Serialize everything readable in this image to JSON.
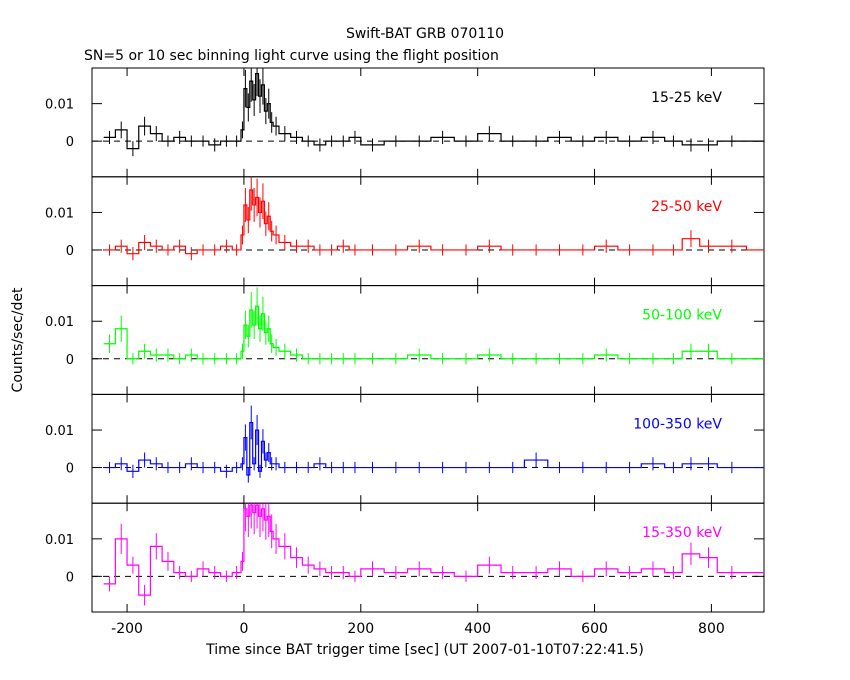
{
  "title": "Swift-BAT GRB 070110",
  "subtitle": "SN=5 or 10 sec binning light curve using the flight position",
  "chart_data": {
    "type": "line",
    "xlabel": "Time since BAT trigger time [sec] (UT 2007-01-10T07:22:41.5)",
    "ylabel": "Counts/sec/det",
    "xlim": [
      -260,
      890
    ],
    "xticks": [
      -200,
      0,
      200,
      400,
      600,
      800
    ],
    "ylim": [
      -0.0095,
      0.0195
    ],
    "yticks": [
      0,
      0.01
    ],
    "reference_line": 0,
    "panels": [
      {
        "band": "15-25 keV",
        "color": "#000000",
        "x": [
          -240,
          -220,
          -200,
          -180,
          -160,
          -140,
          -120,
          -100,
          -80,
          -60,
          -40,
          -20,
          -5,
          0,
          5,
          10,
          15,
          20,
          25,
          30,
          35,
          40,
          45,
          50,
          60,
          80,
          100,
          120,
          140,
          160,
          180,
          200,
          240,
          280,
          320,
          360,
          400,
          440,
          480,
          520,
          560,
          600,
          640,
          680,
          720,
          750,
          780,
          810,
          860
        ],
        "y": [
          0.001,
          0.003,
          -0.002,
          0.004,
          0.002,
          0.0,
          0.001,
          0.0,
          0.0,
          -0.001,
          0.0,
          0.0,
          0.003,
          0.014,
          0.009,
          0.016,
          0.011,
          0.018,
          0.012,
          0.015,
          0.008,
          0.01,
          0.005,
          0.004,
          0.002,
          0.001,
          0.0,
          -0.001,
          0.0,
          0.0,
          0.001,
          -0.001,
          0.0,
          0.0,
          0.001,
          0.0,
          0.002,
          0.0,
          0.0,
          0.001,
          0.0,
          0.001,
          0.0,
          0.001,
          0.0,
          -0.001,
          -0.001,
          0.0,
          0.0
        ]
      },
      {
        "band": "25-50 keV",
        "color": "#ff0000",
        "x": [
          -240,
          -220,
          -200,
          -180,
          -160,
          -140,
          -120,
          -100,
          -80,
          -60,
          -40,
          -20,
          -5,
          0,
          5,
          10,
          15,
          20,
          25,
          30,
          35,
          40,
          45,
          50,
          60,
          80,
          100,
          120,
          140,
          160,
          180,
          200,
          240,
          280,
          320,
          360,
          400,
          440,
          480,
          520,
          560,
          600,
          640,
          680,
          720,
          750,
          780,
          810,
          860
        ],
        "y": [
          0.0,
          0.001,
          -0.001,
          0.002,
          0.001,
          0.0,
          0.001,
          -0.001,
          0.0,
          0.0,
          0.001,
          0.0,
          0.004,
          0.012,
          0.008,
          0.016,
          0.012,
          0.014,
          0.01,
          0.013,
          0.007,
          0.009,
          0.005,
          0.004,
          0.002,
          0.001,
          0.001,
          0.0,
          0.0,
          0.001,
          0.0,
          0.0,
          0.0,
          0.001,
          0.0,
          0.0,
          0.001,
          0.0,
          0.0,
          0.0,
          0.0,
          0.001,
          0.0,
          0.0,
          0.0,
          0.003,
          0.001,
          0.001,
          0.0
        ]
      },
      {
        "band": "50-100 keV",
        "color": "#00ff00",
        "x": [
          -240,
          -220,
          -200,
          -180,
          -160,
          -140,
          -120,
          -100,
          -80,
          -60,
          -40,
          -20,
          -5,
          0,
          5,
          10,
          15,
          20,
          25,
          30,
          35,
          40,
          45,
          50,
          60,
          80,
          100,
          120,
          140,
          160,
          180,
          200,
          240,
          280,
          320,
          360,
          400,
          440,
          480,
          520,
          560,
          600,
          640,
          680,
          720,
          750,
          780,
          810,
          860
        ],
        "y": [
          0.004,
          0.008,
          0.0,
          0.002,
          0.001,
          0.001,
          0.0,
          0.001,
          0.0,
          0.0,
          0.0,
          0.0,
          0.002,
          0.009,
          0.006,
          0.013,
          0.009,
          0.014,
          0.008,
          0.012,
          0.007,
          0.008,
          0.004,
          0.003,
          0.002,
          0.001,
          0.0,
          0.0,
          0.0,
          0.0,
          0.0,
          0.0,
          0.0,
          0.001,
          0.0,
          0.0,
          0.001,
          0.0,
          0.0,
          0.0,
          0.0,
          0.001,
          0.0,
          0.0,
          0.0,
          0.002,
          0.002,
          0.0,
          0.0
        ]
      },
      {
        "band": "100-350 keV",
        "color": "#0000ff",
        "x": [
          -240,
          -220,
          -200,
          -180,
          -160,
          -140,
          -120,
          -100,
          -80,
          -60,
          -40,
          -20,
          -5,
          0,
          5,
          10,
          15,
          20,
          25,
          30,
          35,
          40,
          45,
          50,
          60,
          80,
          100,
          120,
          140,
          160,
          180,
          200,
          240,
          280,
          320,
          360,
          400,
          440,
          480,
          520,
          560,
          600,
          640,
          680,
          720,
          750,
          780,
          810,
          860
        ],
        "y": [
          0.0,
          0.001,
          -0.001,
          0.002,
          0.001,
          0.0,
          0.0,
          0.001,
          0.0,
          0.0,
          -0.001,
          0.0,
          0.001,
          0.008,
          -0.002,
          0.012,
          0.001,
          0.01,
          -0.001,
          0.007,
          0.002,
          0.004,
          0.001,
          0.001,
          0.0,
          0.0,
          0.0,
          0.001,
          0.0,
          0.0,
          0.0,
          0.0,
          0.0,
          0.0,
          0.0,
          0.0,
          0.0,
          0.0,
          0.002,
          0.0,
          0.0,
          0.0,
          0.0,
          0.001,
          0.0,
          0.001,
          0.001,
          0.0,
          0.0
        ]
      },
      {
        "band": "15-350 keV",
        "color": "#ff00ff",
        "x": [
          -240,
          -220,
          -200,
          -180,
          -160,
          -140,
          -120,
          -100,
          -80,
          -60,
          -40,
          -20,
          -5,
          0,
          5,
          10,
          15,
          20,
          25,
          30,
          35,
          40,
          45,
          50,
          60,
          80,
          100,
          120,
          140,
          160,
          180,
          200,
          240,
          280,
          320,
          360,
          400,
          440,
          480,
          520,
          560,
          600,
          640,
          680,
          720,
          750,
          780,
          810,
          860
        ],
        "y": [
          -0.002,
          0.01,
          0.003,
          -0.005,
          0.008,
          0.004,
          0.001,
          0.0,
          0.002,
          0.001,
          0.0,
          0.001,
          0.004,
          0.018,
          0.016,
          0.019,
          0.017,
          0.019,
          0.016,
          0.018,
          0.015,
          0.016,
          0.012,
          0.01,
          0.008,
          0.005,
          0.003,
          0.002,
          0.001,
          0.001,
          0.0,
          0.002,
          0.001,
          0.002,
          0.001,
          0.0,
          0.003,
          0.001,
          0.001,
          0.002,
          0.0,
          0.002,
          0.001,
          0.002,
          0.001,
          0.006,
          0.005,
          0.001,
          0.001
        ]
      }
    ]
  }
}
